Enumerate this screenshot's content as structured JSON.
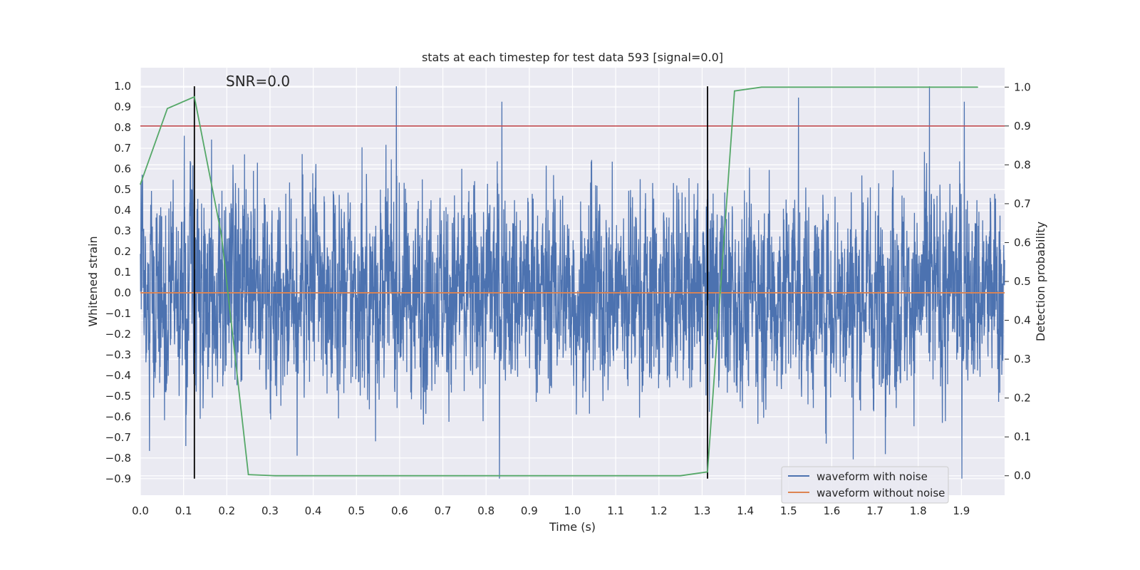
{
  "chart_data": {
    "type": "line",
    "title": "stats at each timestep for test data 593 [signal=0.0]",
    "annotation": "SNR=0.0",
    "xlabel": "Time (s)",
    "ylabel_left": "Whitened strain",
    "ylabel_right": "Detection probability",
    "xlim": [
      0.0,
      2.0
    ],
    "ylim_left": [
      -0.98,
      1.09
    ],
    "ylim_right": [
      -0.05,
      1.05
    ],
    "xticks": [
      "0.0",
      "0.1",
      "0.2",
      "0.3",
      "0.4",
      "0.5",
      "0.6",
      "0.7",
      "0.8",
      "0.9",
      "1.0",
      "1.1",
      "1.2",
      "1.3",
      "1.4",
      "1.5",
      "1.6",
      "1.7",
      "1.8",
      "1.9"
    ],
    "yticks_left": [
      "1.0",
      "0.9",
      "0.8",
      "0.7",
      "0.6",
      "0.5",
      "0.4",
      "0.3",
      "0.2",
      "0.1",
      "0.0",
      "−0.1",
      "−0.2",
      "−0.3",
      "−0.4",
      "−0.5",
      "−0.6",
      "−0.7",
      "−0.8",
      "−0.9"
    ],
    "yticks_right": [
      "1.0",
      "0.9",
      "0.8",
      "0.7",
      "0.6",
      "0.5",
      "0.4",
      "0.3",
      "0.2",
      "0.1",
      "0.0"
    ],
    "grid": true,
    "legend_placement": "lower-right",
    "legend": [
      "waveform with noise",
      "waveform without noise"
    ],
    "series": [
      {
        "name": "waveform with noise",
        "axis": "left",
        "color": "#4c72b0",
        "sample_rate_hz": 2048,
        "amplitude_range": [
          -0.9,
          1.0
        ],
        "note_values": "dense noise trace; approximately zero-mean with peaks up to 1.0 and troughs to -0.9"
      },
      {
        "name": "waveform without noise",
        "axis": "left",
        "color": "#dd8452",
        "x": [
          0.0,
          2.0
        ],
        "y": [
          0.0,
          0.0
        ]
      },
      {
        "name": "detection probability",
        "axis": "right",
        "color": "#55a868",
        "x": [
          0.0,
          0.0625,
          0.125,
          0.1875,
          0.25,
          0.3125,
          0.375,
          0.4375,
          0.5,
          0.5625,
          0.625,
          0.6875,
          0.75,
          0.8125,
          0.875,
          0.9375,
          1.0,
          1.0625,
          1.125,
          1.1875,
          1.25,
          1.3125,
          1.375,
          1.4375,
          1.5,
          1.5625,
          1.625,
          1.6875,
          1.75,
          1.8125,
          1.875,
          1.9375
        ],
        "y": [
          0.75,
          0.945,
          0.975,
          0.62,
          0.003,
          0.0,
          0.0,
          0.0,
          0.0,
          0.0,
          0.0,
          0.0,
          0.0,
          0.0,
          0.0,
          0.0,
          0.0,
          0.0,
          0.0,
          0.0,
          0.0,
          0.01,
          0.99,
          1.0,
          1.0,
          1.0,
          1.0,
          1.0,
          1.0,
          1.0,
          1.0,
          1.0
        ]
      }
    ],
    "threshold_line": {
      "axis": "right",
      "y": 0.9,
      "color": "#c44e52"
    },
    "vertical_markers": {
      "x": [
        0.125,
        1.3125
      ],
      "color": "#000000"
    }
  }
}
